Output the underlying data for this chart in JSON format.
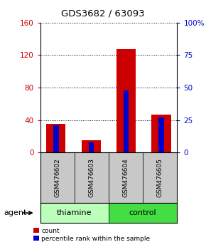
{
  "title": "GDS3682 / 63093",
  "samples": [
    "GSM476602",
    "GSM476603",
    "GSM476604",
    "GSM476605"
  ],
  "count_values": [
    35,
    15,
    127,
    47
  ],
  "percentile_values": [
    21,
    8,
    48,
    27
  ],
  "left_ylim": [
    0,
    160
  ],
  "right_ylim": [
    0,
    100
  ],
  "left_yticks": [
    0,
    40,
    80,
    120,
    160
  ],
  "right_yticks": [
    0,
    25,
    50,
    75,
    100
  ],
  "right_yticklabels": [
    "0",
    "25",
    "50",
    "75",
    "100%"
  ],
  "bar_color_count": "#cc0000",
  "bar_color_pct": "#0000cc",
  "left_tick_color": "#cc0000",
  "right_tick_color": "#0000cc",
  "group_colors": {
    "thiamine": "#bbffbb",
    "control": "#44dd44"
  },
  "sample_label_bg": "#c8c8c8",
  "count_bar_width": 0.55,
  "pct_bar_width": 0.15,
  "grid_color": "#000000"
}
